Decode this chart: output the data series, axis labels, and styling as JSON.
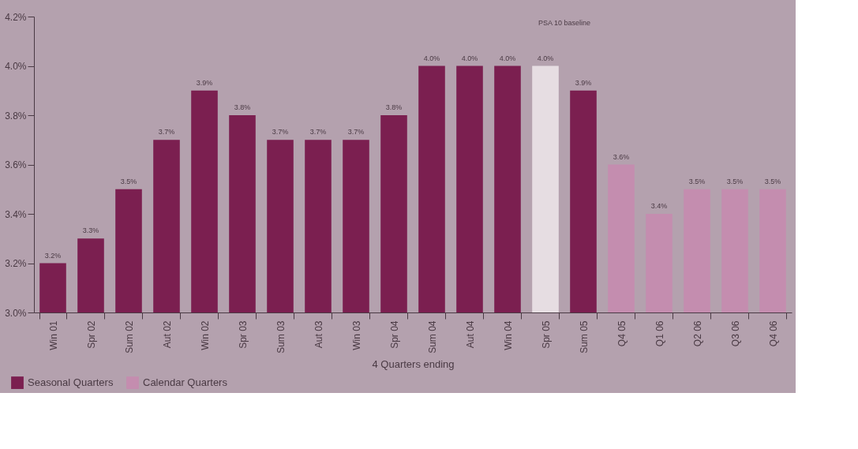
{
  "chart_data": {
    "type": "bar",
    "categories": [
      "Win 01",
      "Spr 02",
      "Sum 02",
      "Aut 02",
      "Win 02",
      "Spr 03",
      "Sum 03",
      "Aut 03",
      "Win 03",
      "Spr 04",
      "Sum 04",
      "Aut 04",
      "Win 04",
      "Spr 05",
      "Sum 05",
      "Q4 05",
      "Q1 06",
      "Q2 06",
      "Q3 06",
      "Q4 06"
    ],
    "series": [
      {
        "name": "Seasonal Quarters",
        "color": "#7b1f50",
        "values": [
          3.2,
          3.3,
          3.5,
          3.7,
          3.9,
          3.8,
          3.7,
          3.7,
          3.7,
          3.8,
          4.0,
          4.0,
          4.0,
          4.0,
          3.9,
          null,
          null,
          null,
          null,
          null
        ],
        "colors": [
          "#7b1f50",
          "#7b1f50",
          "#7b1f50",
          "#7b1f50",
          "#7b1f50",
          "#7b1f50",
          "#7b1f50",
          "#7b1f50",
          "#7b1f50",
          "#7b1f50",
          "#7b1f50",
          "#7b1f50",
          "#7b1f50",
          "#e6dde2",
          "#7b1f50",
          null,
          null,
          null,
          null,
          null
        ],
        "value_labels": [
          "3.2%",
          "3.3%",
          "3.5%",
          "3.7%",
          "3.9%",
          "3.8%",
          "3.7%",
          "3.7%",
          "3.7%",
          "3.8%",
          "4.0%",
          "4.0%",
          "4.0%",
          "4.0%",
          "3.9%",
          null,
          null,
          null,
          null,
          null
        ]
      },
      {
        "name": "Calendar Quarters",
        "color": "#c48daf",
        "values": [
          null,
          null,
          null,
          null,
          null,
          null,
          null,
          null,
          null,
          null,
          null,
          null,
          null,
          null,
          null,
          3.6,
          3.4,
          3.5,
          3.5,
          3.5
        ],
        "value_labels": [
          null,
          null,
          null,
          null,
          null,
          null,
          null,
          null,
          null,
          null,
          null,
          null,
          null,
          null,
          null,
          "3.6%",
          "3.4%",
          "3.5%",
          "3.5%",
          "3.5%"
        ]
      }
    ],
    "xlabel": "4 Quarters ending",
    "ylim": [
      3.0,
      4.2
    ],
    "yticks": [
      {
        "value": 3.0,
        "label": "3.0%"
      },
      {
        "value": 3.2,
        "label": "3.2%"
      },
      {
        "value": 3.4,
        "label": "3.4%"
      },
      {
        "value": 3.6,
        "label": "3.6%"
      },
      {
        "value": 3.8,
        "label": "3.8%"
      },
      {
        "value": 4.0,
        "label": "4.0%"
      },
      {
        "value": 4.2,
        "label": "4.2%"
      }
    ],
    "annotations": [
      "PSA 10 baseline"
    ],
    "grid": false,
    "legend": "bottom left"
  }
}
